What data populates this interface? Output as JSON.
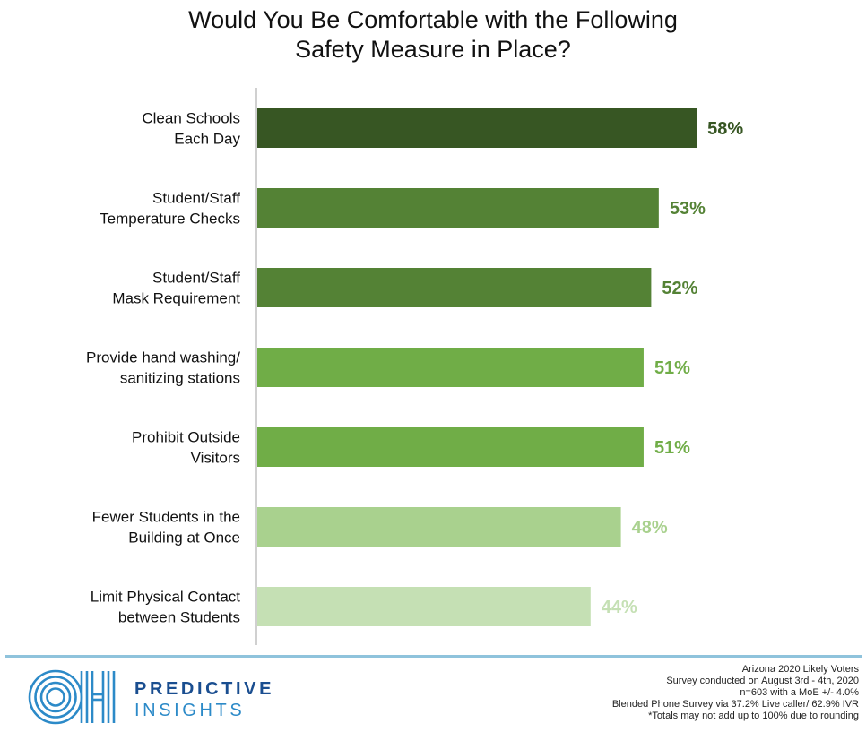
{
  "chart_data": {
    "type": "bar",
    "orientation": "horizontal",
    "title_lines": [
      "Would You Be Comfortable with the Following",
      "Safety Measure in Place?"
    ],
    "categories": [
      [
        "Clean Schools",
        "Each Day"
      ],
      [
        "Student/Staff",
        "Temperature Checks"
      ],
      [
        "Student/Staff",
        "Mask Requirement"
      ],
      [
        "Provide hand washing/",
        "sanitizing stations"
      ],
      [
        "Prohibit Outside",
        "Visitors"
      ],
      [
        "Fewer Students in the",
        "Building at Once"
      ],
      [
        "Limit Physical Contact",
        "between Students"
      ]
    ],
    "values": [
      58,
      53,
      52,
      51,
      51,
      48,
      44
    ],
    "value_labels": [
      "58%",
      "53%",
      "52%",
      "51%",
      "51%",
      "48%",
      "44%"
    ],
    "bar_colors": [
      "#375623",
      "#548235",
      "#548235",
      "#70ad47",
      "#70ad47",
      "#a9d18e",
      "#c5e0b4"
    ],
    "xlim": [
      0,
      70
    ],
    "grid": false,
    "legend": "none"
  },
  "brand": {
    "logo_letters": "OH",
    "line1": "PREDICTIVE",
    "line2": "INSIGHTS",
    "color_dark": "#1a4e90",
    "color_light": "#2c8ac8"
  },
  "footnotes": [
    "Arizona 2020 Likely Voters",
    "Survey conducted on August 3rd - 4th, 2020",
    "n=603 with a MoE +/- 4.0%",
    "Blended Phone Survey via 37.2% Live caller/ 62.9% IVR",
    "*Totals may not add up to 100% due to rounding"
  ]
}
